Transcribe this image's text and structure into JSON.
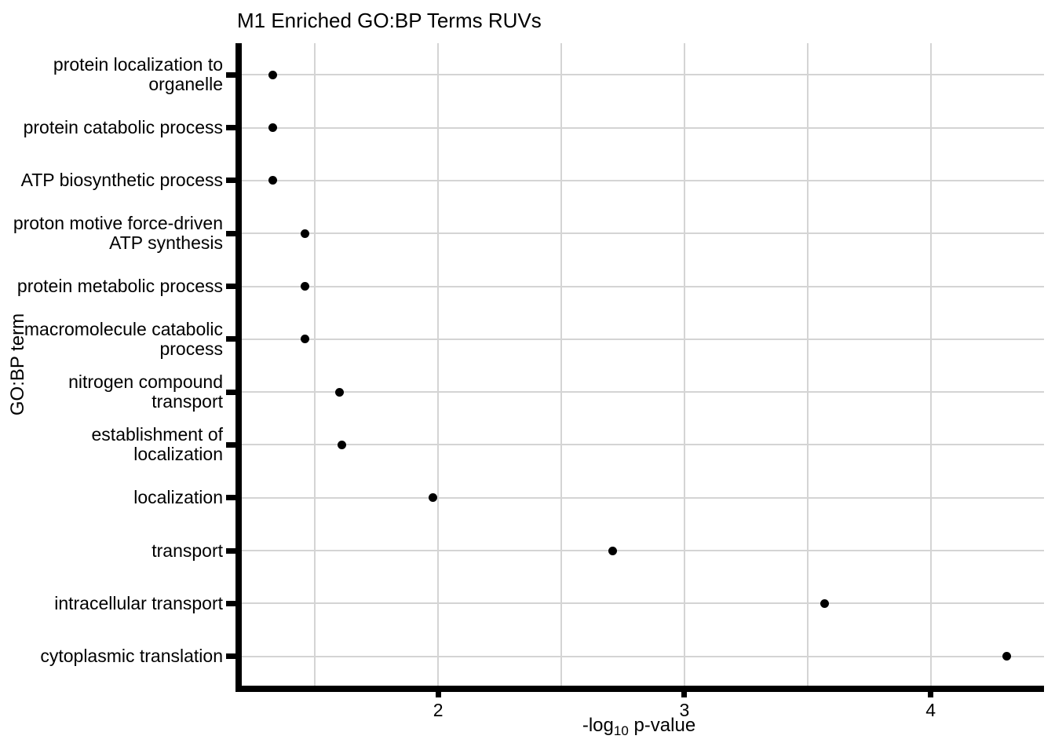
{
  "chart_data": {
    "type": "scatter",
    "title": "M1 Enriched GO:BP Terms RUVs",
    "xlabel": "-log10 p-value",
    "xlabel_parts": {
      "pre": "-log",
      "sub": "10",
      "post": " p-value"
    },
    "ylabel": "GO:BP term",
    "categories": [
      "protein localization to organelle",
      "protein catabolic process",
      "ATP biosynthetic process",
      "proton motive force-driven ATP synthesis",
      "protein metabolic process",
      "macromolecule catabolic process",
      "nitrogen compound transport",
      "establishment of localization",
      "localization",
      "transport",
      "intracellular transport",
      "cytoplasmic translation"
    ],
    "category_lines": [
      [
        "protein localization to",
        "organelle"
      ],
      [
        "protein catabolic process"
      ],
      [
        "ATP biosynthetic process"
      ],
      [
        "proton motive force-driven",
        "ATP synthesis"
      ],
      [
        "protein metabolic process"
      ],
      [
        "macromolecule catabolic",
        "process"
      ],
      [
        "nitrogen compound transport"
      ],
      [
        "establishment of localization"
      ],
      [
        "localization"
      ],
      [
        "transport"
      ],
      [
        "intracellular transport"
      ],
      [
        "cytoplasmic translation"
      ]
    ],
    "values": [
      1.33,
      1.33,
      1.33,
      1.46,
      1.46,
      1.46,
      1.6,
      1.61,
      1.98,
      2.71,
      3.57,
      4.31
    ],
    "x_ticks": [
      2,
      3,
      4
    ],
    "x_gridlines": [
      1.5,
      2,
      2.5,
      3,
      3.5,
      4
    ],
    "xlim": [
      1.19,
      4.46
    ],
    "legend_position": "none",
    "grid": "light vertical lines every 0.5 units; light horizontal line at each category",
    "point_color": "#000000",
    "grid_color": "#d4d4d4",
    "axis_color": "#000000",
    "text_color": "#000000",
    "background_color": "#ffffff"
  }
}
